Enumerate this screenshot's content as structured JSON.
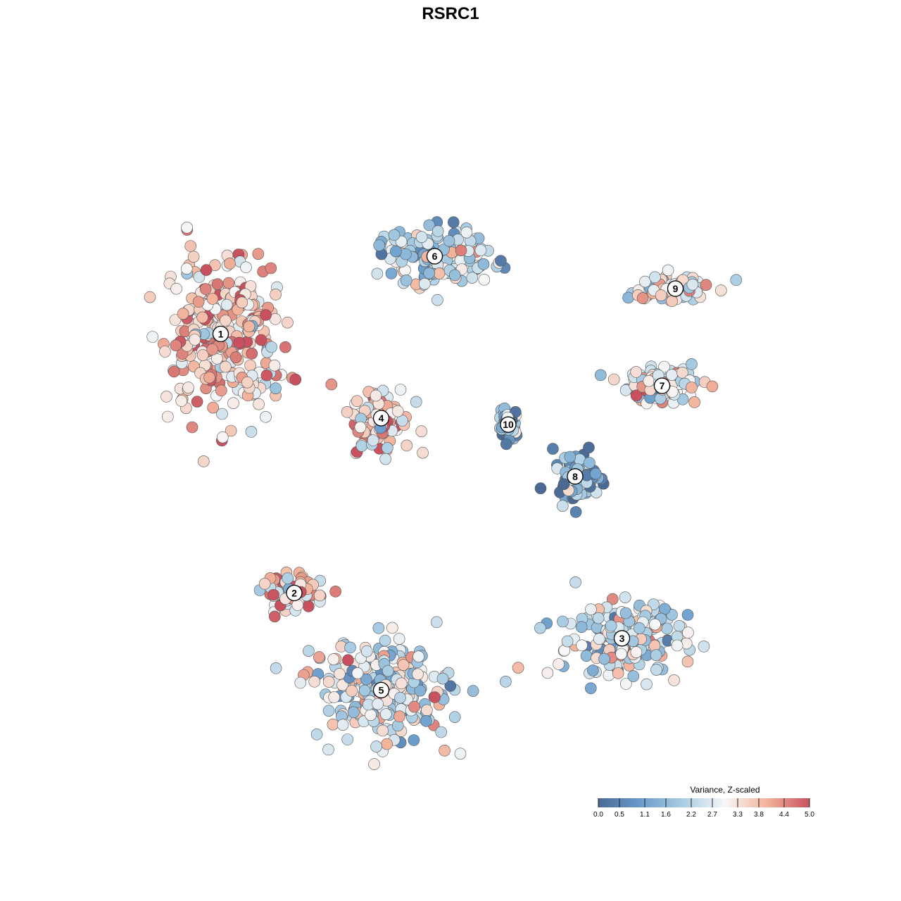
{
  "chart_data": {
    "type": "scatter",
    "title": "RSRC1",
    "xlabel": "",
    "ylabel": "",
    "grid": false,
    "axes_visible": false,
    "xlim": [
      0,
      100
    ],
    "ylim": [
      0,
      100
    ],
    "color_scale": {
      "title": "Variance, Z-scaled",
      "min": 0.0,
      "max": 5.0,
      "tick_labels": [
        "0.0",
        "0.5",
        "1.1",
        "1.6",
        "2.2",
        "2.7",
        "3.3",
        "3.8",
        "4.4",
        "5.0"
      ],
      "tick_values": [
        0.0,
        0.5,
        1.1,
        1.6,
        2.2,
        2.7,
        3.3,
        3.8,
        4.4,
        5.0
      ],
      "colors": [
        "#4a6a95",
        "#6a9ccc",
        "#a9cde3",
        "#f7f7f7",
        "#f3b29a",
        "#c8505f"
      ],
      "legend_position": "bottom-right"
    },
    "clusters": [
      {
        "label": "1",
        "x": 13.0,
        "y": 68.0,
        "mean_value": 3.6,
        "spread": [
          7.5,
          11.0
        ]
      },
      {
        "label": "2",
        "x": 24.0,
        "y": 28.0,
        "mean_value": 3.7,
        "spread": [
          4.5,
          2.2
        ]
      },
      {
        "label": "3",
        "x": 73.0,
        "y": 21.0,
        "mean_value": 2.6,
        "spread": [
          8.5,
          5.5
        ]
      },
      {
        "label": "4",
        "x": 37.0,
        "y": 55.0,
        "mean_value": 3.5,
        "spread": [
          4.0,
          4.5
        ]
      },
      {
        "label": "5",
        "x": 37.0,
        "y": 13.0,
        "mean_value": 2.5,
        "spread": [
          9.5,
          7.0
        ]
      },
      {
        "label": "6",
        "x": 45.0,
        "y": 80.0,
        "mean_value": 2.2,
        "spread": [
          8.0,
          4.0
        ]
      },
      {
        "label": "7",
        "x": 79.0,
        "y": 60.0,
        "mean_value": 3.0,
        "spread": [
          5.5,
          2.5
        ]
      },
      {
        "label": "8",
        "x": 66.0,
        "y": 46.0,
        "mean_value": 1.3,
        "spread": [
          3.0,
          3.5
        ]
      },
      {
        "label": "9",
        "x": 81.0,
        "y": 75.0,
        "mean_value": 2.9,
        "spread": [
          5.0,
          2.0
        ]
      },
      {
        "label": "10",
        "x": 56.0,
        "y": 54.0,
        "mean_value": 1.3,
        "spread": [
          1.5,
          2.0
        ]
      }
    ]
  }
}
